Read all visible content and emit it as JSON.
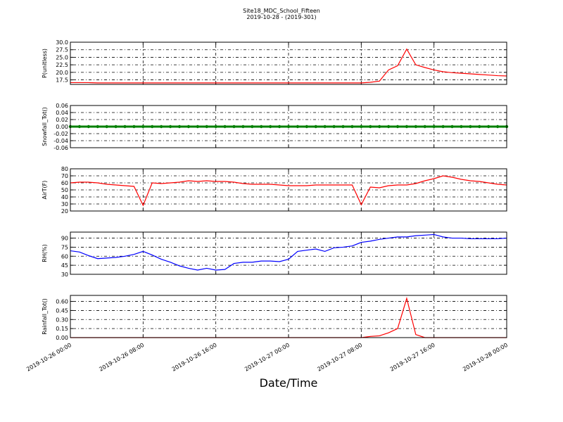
{
  "title": "Site18_MDC_School_Fifteen",
  "subtitle": "2019-10-28 - (2019-301)",
  "xlabel": "Date/Time",
  "xlim": [
    "2019-10-26 00:00",
    "2019-10-28 00:00"
  ],
  "xticks": [
    "2019-10-26 00:00",
    "2019-10-26 08:00",
    "2019-10-26 16:00",
    "2019-10-27 00:00",
    "2019-10-27 08:00",
    "2019-10-27 16:00",
    "2019-10-28 00:00"
  ],
  "x": [
    "2019-10-26 00:00",
    "2019-10-26 01:00",
    "2019-10-26 02:00",
    "2019-10-26 03:00",
    "2019-10-26 04:00",
    "2019-10-26 05:00",
    "2019-10-26 06:00",
    "2019-10-26 07:00",
    "2019-10-26 08:00",
    "2019-10-26 09:00",
    "2019-10-26 10:00",
    "2019-10-26 11:00",
    "2019-10-26 12:00",
    "2019-10-26 13:00",
    "2019-10-26 14:00",
    "2019-10-26 15:00",
    "2019-10-26 16:00",
    "2019-10-26 17:00",
    "2019-10-26 18:00",
    "2019-10-26 19:00",
    "2019-10-26 20:00",
    "2019-10-26 21:00",
    "2019-10-26 22:00",
    "2019-10-26 23:00",
    "2019-10-27 00:00",
    "2019-10-27 01:00",
    "2019-10-27 02:00",
    "2019-10-27 03:00",
    "2019-10-27 04:00",
    "2019-10-27 05:00",
    "2019-10-27 06:00",
    "2019-10-27 07:00",
    "2019-10-27 08:00",
    "2019-10-27 09:00",
    "2019-10-27 10:00",
    "2019-10-27 11:00",
    "2019-10-27 12:00",
    "2019-10-27 13:00",
    "2019-10-27 14:00",
    "2019-10-27 15:00",
    "2019-10-27 16:00",
    "2019-10-27 17:00",
    "2019-10-27 18:00",
    "2019-10-27 19:00",
    "2019-10-27 20:00",
    "2019-10-27 21:00",
    "2019-10-27 22:00",
    "2019-10-27 23:00",
    "2019-10-28 00:00"
  ],
  "chart_data": [
    {
      "type": "line",
      "ylabel": "P(unitless)",
      "ylim": [
        16,
        30
      ],
      "grid": true,
      "yticks": [
        17.5,
        {
          "value": 20,
          "label": "20.0"
        },
        22.5,
        {
          "value": 25,
          "label": "25.0"
        },
        27.5,
        {
          "value": 30,
          "label": "30.0"
        }
      ],
      "series": [
        {
          "color": "#ff0000",
          "values": [
            16.6,
            16.6,
            16.6,
            16.5,
            16.5,
            16.5,
            16.5,
            16.5,
            16.5,
            16.5,
            16.5,
            16.5,
            16.5,
            16.5,
            16.5,
            16.5,
            16.5,
            16.5,
            16.5,
            16.5,
            16.5,
            16.5,
            16.5,
            16.5,
            16.5,
            16.5,
            16.5,
            16.5,
            16.5,
            16.5,
            16.5,
            16.5,
            16.5,
            16.7,
            17.1,
            20.8,
            22.2,
            27.7,
            22.5,
            21.6,
            20.8,
            20.2,
            19.9,
            19.7,
            19.5,
            19.3,
            19.1,
            18.9,
            18.8
          ]
        }
      ]
    },
    {
      "type": "line",
      "ylabel": "Snowfall_Tot()",
      "ylim": [
        -0.06,
        0.06
      ],
      "grid": true,
      "markers": true,
      "yticks": [
        -0.06,
        -0.04,
        -0.02,
        {
          "value": 0,
          "label": "0.00"
        },
        0.02,
        0.04,
        0.06
      ],
      "series": [
        {
          "color": "#008000",
          "values": [
            0,
            0,
            0,
            0,
            0,
            0,
            0,
            0,
            0,
            0,
            0,
            0,
            0,
            0,
            0,
            0,
            0,
            0,
            0,
            0,
            0,
            0,
            0,
            0,
            0,
            0,
            0,
            0,
            0,
            0,
            0,
            0,
            0,
            0,
            0,
            0,
            0,
            0,
            0,
            0,
            0,
            0,
            0,
            0,
            0,
            0,
            0,
            0,
            0
          ]
        }
      ]
    },
    {
      "type": "line",
      "ylabel": "AirT(F)",
      "ylim": [
        20,
        80
      ],
      "grid": true,
      "yticks": [
        20,
        30,
        40,
        50,
        60,
        70,
        80
      ],
      "series": [
        {
          "color": "#ff0000",
          "values": [
            60,
            61,
            61,
            60,
            58,
            57,
            56,
            55,
            28,
            60,
            59,
            60,
            61,
            63,
            62,
            63,
            62,
            62,
            61,
            59,
            58,
            58,
            58,
            57,
            56,
            56,
            56,
            57,
            57,
            57,
            57,
            57,
            29,
            54,
            53,
            56,
            57,
            57,
            59,
            63,
            66,
            70,
            68,
            65,
            63,
            62,
            60,
            58,
            57
          ]
        }
      ]
    },
    {
      "type": "line",
      "ylabel": "RH(%)",
      "ylim": [
        30,
        100
      ],
      "grid": true,
      "yticks": [
        30,
        45,
        60,
        75,
        90
      ],
      "series": [
        {
          "color": "#0000ff",
          "values": [
            69,
            67,
            61,
            56,
            57,
            58,
            60,
            63,
            68,
            62,
            55,
            50,
            44,
            40,
            37,
            40,
            37,
            38,
            48,
            50,
            50,
            52,
            52,
            51,
            55,
            68,
            70,
            72,
            68,
            74,
            75,
            77,
            83,
            85,
            88,
            90,
            92,
            92,
            94,
            95,
            96,
            92,
            90,
            90,
            89,
            89,
            89,
            89,
            90
          ]
        }
      ]
    },
    {
      "type": "line",
      "ylabel": "Rainfall_Tot()",
      "ylim": [
        0,
        0.7
      ],
      "grid": true,
      "yticks": [
        {
          "value": 0,
          "label": "0.00"
        },
        0.15,
        {
          "value": 0.3,
          "label": "0.30"
        },
        0.45,
        {
          "value": 0.6,
          "label": "0.60"
        }
      ],
      "series": [
        {
          "color": "#ff0000",
          "values": [
            0,
            0,
            0,
            0,
            0,
            0,
            0,
            0,
            0,
            0,
            0,
            0,
            0,
            0,
            0,
            0,
            0,
            0,
            0,
            0,
            0,
            0,
            0,
            0,
            0,
            0,
            0,
            0,
            0,
            0,
            0,
            0,
            0,
            0.02,
            0.03,
            0.08,
            0.15,
            0.65,
            0.05,
            0,
            0,
            0,
            0,
            0,
            0,
            0,
            0,
            0,
            0
          ]
        }
      ]
    }
  ]
}
